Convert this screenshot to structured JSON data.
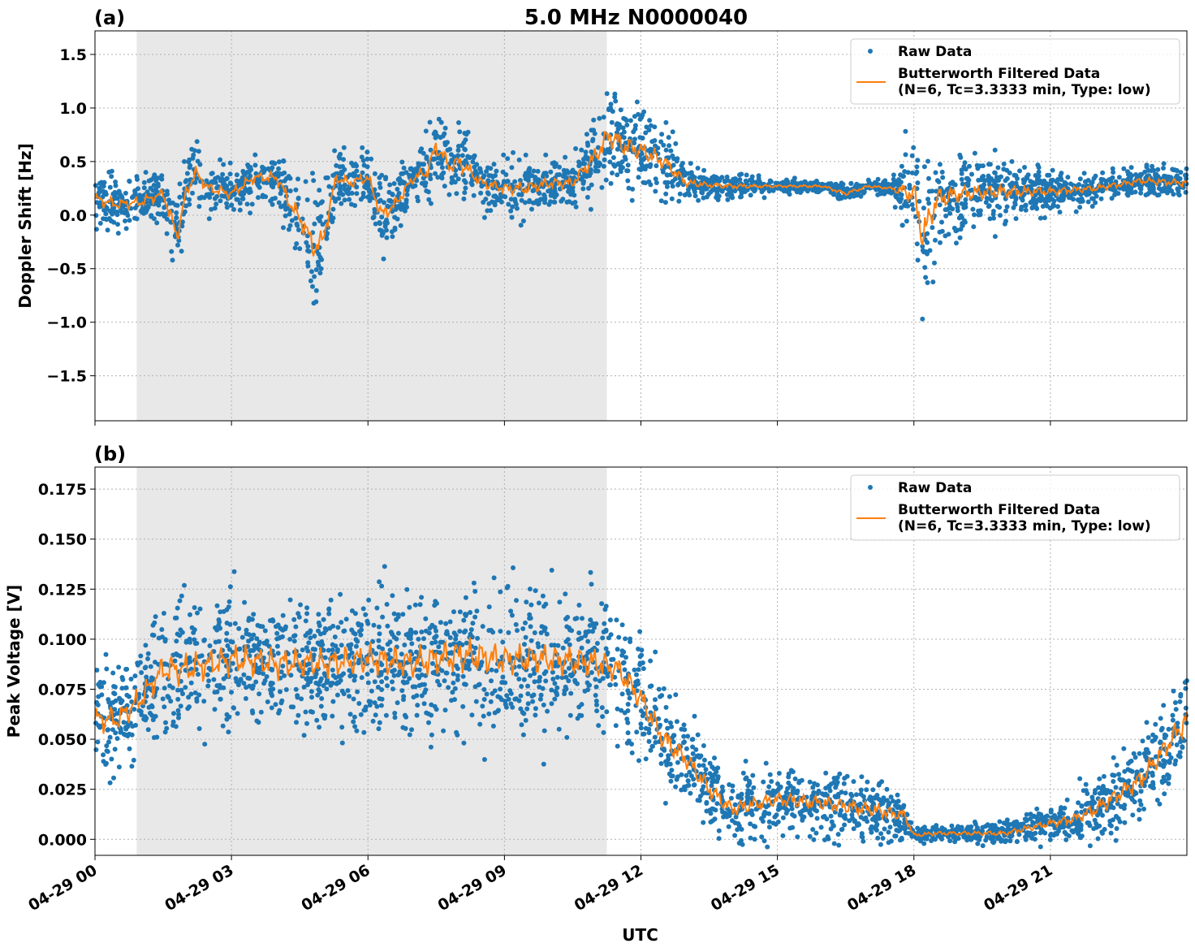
{
  "chart_data": [
    {
      "type": "scatter",
      "panel_label": "(a)",
      "title": "5.0 MHz N0000040",
      "xlabel": "",
      "ylabel": "Doppler Shift [Hz]",
      "xlim": [
        "04-29 00:00",
        "04-30 00:00"
      ],
      "ylim": [
        -1.92,
        1.72
      ],
      "yticks": [
        1.5,
        1.0,
        0.5,
        0.0,
        -0.5,
        -1.0,
        -1.5
      ],
      "ytick_labels": [
        "1.5",
        "1.0",
        "0.5",
        "0.0",
        "−0.5",
        "−1.0",
        "−1.5"
      ],
      "xticks": [
        "04-29 00:00",
        "04-29 03:00",
        "04-29 06:00",
        "04-29 09:00",
        "04-29 12:00",
        "04-29 15:00",
        "04-29 18:00",
        "04-29 21:00"
      ],
      "grid": true,
      "legend_position": "top-right",
      "shaded_region": [
        "04-29 00:55",
        "04-29 11:15"
      ],
      "series": [
        {
          "name": "Raw Data",
          "kind": "scatter",
          "x_hours": [
            0,
            0.5,
            1,
            1.5,
            1.8,
            2,
            2.2,
            2.5,
            3,
            3.5,
            4,
            4.3,
            4.6,
            4.8,
            5,
            5.3,
            5.6,
            6,
            6.3,
            6.6,
            7,
            7.3,
            7.5,
            7.8,
            8,
            8.5,
            9,
            9.5,
            10,
            10.5,
            11,
            11.3,
            11.6,
            12,
            12.5,
            13,
            13.5,
            14,
            15,
            16,
            16.5,
            17,
            17.5,
            18,
            18.2,
            18.5,
            19,
            20,
            21,
            22,
            23,
            24
          ],
          "y_center": [
            0.15,
            0.1,
            0.12,
            0.2,
            -0.2,
            0.2,
            0.5,
            0.25,
            0.2,
            0.35,
            0.35,
            0.1,
            -0.1,
            -0.3,
            -0.25,
            0.35,
            0.3,
            0.35,
            0.0,
            0.1,
            0.35,
            0.4,
            0.65,
            0.45,
            0.5,
            0.3,
            0.25,
            0.25,
            0.3,
            0.3,
            0.55,
            0.75,
            0.65,
            0.6,
            0.5,
            0.3,
            0.28,
            0.27,
            0.27,
            0.27,
            0.2,
            0.27,
            0.25,
            0.2,
            -0.2,
            0.15,
            0.2,
            0.22,
            0.22,
            0.25,
            0.32,
            0.3
          ],
          "y_spread": [
            0.25,
            0.2,
            0.2,
            0.2,
            0.35,
            0.25,
            0.25,
            0.2,
            0.2,
            0.2,
            0.2,
            0.3,
            0.4,
            0.45,
            0.4,
            0.2,
            0.2,
            0.2,
            0.3,
            0.25,
            0.2,
            0.25,
            0.35,
            0.25,
            0.3,
            0.2,
            0.2,
            0.25,
            0.2,
            0.2,
            0.35,
            0.45,
            0.4,
            0.35,
            0.3,
            0.15,
            0.1,
            0.1,
            0.05,
            0.05,
            0.08,
            0.05,
            0.05,
            0.5,
            0.7,
            0.45,
            0.3,
            0.25,
            0.15,
            0.12,
            0.12,
            0.15
          ]
        },
        {
          "name": "Butterworth Filtered Data\n(N=6, Tc=3.3333 min, Type: low)",
          "kind": "line",
          "x_hours": [
            0,
            0.5,
            1,
            1.5,
            1.8,
            2,
            2.2,
            2.5,
            3,
            3.5,
            4,
            4.3,
            4.6,
            4.8,
            5,
            5.3,
            5.6,
            6,
            6.3,
            6.6,
            7,
            7.3,
            7.5,
            7.8,
            8,
            8.5,
            9,
            9.5,
            10,
            10.5,
            11,
            11.3,
            11.6,
            12,
            12.5,
            13,
            13.5,
            14,
            15,
            16,
            16.5,
            17,
            17.5,
            18,
            18.2,
            18.5,
            19,
            20,
            21,
            22,
            23,
            24
          ],
          "y": [
            0.15,
            0.1,
            0.12,
            0.2,
            -0.2,
            0.2,
            0.4,
            0.25,
            0.2,
            0.35,
            0.35,
            0.1,
            -0.1,
            -0.3,
            -0.25,
            0.35,
            0.3,
            0.35,
            0.0,
            0.1,
            0.35,
            0.4,
            0.65,
            0.45,
            0.5,
            0.3,
            0.25,
            0.25,
            0.3,
            0.3,
            0.55,
            0.75,
            0.65,
            0.6,
            0.5,
            0.3,
            0.28,
            0.27,
            0.27,
            0.27,
            0.2,
            0.27,
            0.25,
            0.2,
            -0.2,
            0.15,
            0.2,
            0.22,
            0.22,
            0.25,
            0.32,
            0.3
          ]
        }
      ]
    },
    {
      "type": "scatter",
      "panel_label": "(b)",
      "title": "",
      "xlabel": "UTC",
      "ylabel": "Peak Voltage [V]",
      "xlim": [
        "04-29 00:00",
        "04-30 00:00"
      ],
      "ylim": [
        -0.008,
        0.186
      ],
      "yticks": [
        0.175,
        0.15,
        0.125,
        0.1,
        0.075,
        0.05,
        0.025,
        0.0
      ],
      "ytick_labels": [
        "0.175",
        "0.150",
        "0.125",
        "0.100",
        "0.075",
        "0.050",
        "0.025",
        "0.000"
      ],
      "xticks": [
        "04-29 00:00",
        "04-29 03:00",
        "04-29 06:00",
        "04-29 09:00",
        "04-29 12:00",
        "04-29 15:00",
        "04-29 18:00",
        "04-29 21:00"
      ],
      "xtick_labels": [
        "04-29 00",
        "04-29 03",
        "04-29 06",
        "04-29 09",
        "04-29 12",
        "04-29 15",
        "04-29 18",
        "04-29 21"
      ],
      "grid": true,
      "legend_position": "top-right",
      "shaded_region": [
        "04-29 00:55",
        "04-29 11:15"
      ],
      "series": [
        {
          "name": "Raw Data",
          "kind": "scatter",
          "x_hours": [
            0,
            0.5,
            1,
            1.5,
            2,
            3,
            4,
            5,
            6,
            7,
            8,
            9,
            10,
            11,
            11.5,
            12,
            12.5,
            13,
            13.5,
            14,
            15,
            16,
            17,
            17.8,
            18,
            18.5,
            19,
            20,
            21,
            21.5,
            22,
            23,
            24
          ],
          "y_center": [
            0.06,
            0.06,
            0.07,
            0.085,
            0.085,
            0.09,
            0.088,
            0.088,
            0.09,
            0.088,
            0.092,
            0.09,
            0.09,
            0.088,
            0.085,
            0.07,
            0.05,
            0.04,
            0.025,
            0.015,
            0.02,
            0.018,
            0.015,
            0.012,
            0.002,
            0.003,
            0.003,
            0.003,
            0.008,
            0.01,
            0.015,
            0.03,
            0.06
          ],
          "y_spread": [
            0.025,
            0.025,
            0.025,
            0.03,
            0.03,
            0.03,
            0.03,
            0.028,
            0.03,
            0.03,
            0.035,
            0.03,
            0.03,
            0.03,
            0.025,
            0.025,
            0.025,
            0.02,
            0.018,
            0.015,
            0.015,
            0.015,
            0.015,
            0.012,
            0.004,
            0.004,
            0.004,
            0.005,
            0.008,
            0.01,
            0.015,
            0.02,
            0.025
          ]
        },
        {
          "name": "Butterworth Filtered Data\n(N=6, Tc=3.3333 min, Type: low)",
          "kind": "line",
          "x_hours": [
            0,
            0.5,
            1,
            1.5,
            2,
            3,
            4,
            5,
            6,
            7,
            8,
            9,
            10,
            11,
            11.5,
            12,
            12.5,
            13,
            13.5,
            14,
            15,
            16,
            17,
            17.8,
            18,
            18.5,
            19,
            20,
            21,
            21.5,
            22,
            23,
            24
          ],
          "y": [
            0.06,
            0.06,
            0.07,
            0.085,
            0.085,
            0.09,
            0.088,
            0.088,
            0.09,
            0.088,
            0.092,
            0.09,
            0.09,
            0.088,
            0.085,
            0.07,
            0.05,
            0.04,
            0.025,
            0.015,
            0.02,
            0.018,
            0.015,
            0.012,
            0.002,
            0.003,
            0.003,
            0.003,
            0.008,
            0.01,
            0.015,
            0.03,
            0.06
          ]
        }
      ]
    }
  ],
  "legend": {
    "raw_label": "Raw Data",
    "filtered_label_line1": "Butterworth Filtered Data",
    "filtered_label_line2": "(N=6, Tc=3.3333 min, Type: low)"
  },
  "colors": {
    "raw": "#1f77b4",
    "filtered": "#ff7f0e",
    "shade": "#e8e8e8",
    "grid": "#b0b0b0"
  }
}
